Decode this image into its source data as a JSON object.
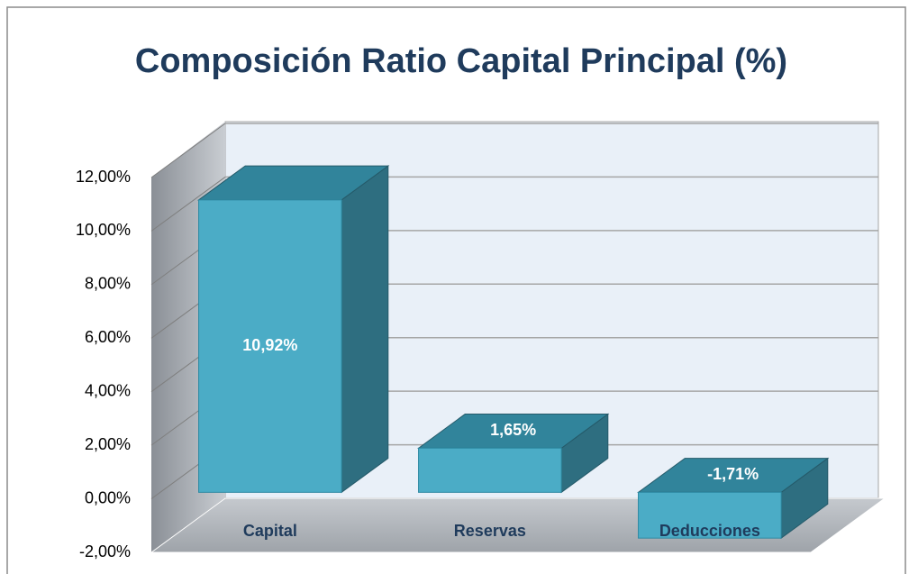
{
  "chart_data": {
    "type": "bar3d",
    "title": "Composición Ratio Capital Principal (%)",
    "categories": [
      "Capital",
      "Reservas",
      "Deducciones"
    ],
    "values": [
      10.92,
      1.65,
      -1.71
    ],
    "value_labels": [
      "10,92%",
      "1,65%",
      "-1,71%"
    ],
    "color": "#4bacc6",
    "ylim": [
      -2,
      12
    ],
    "yticks": [
      {
        "value": -2,
        "label": "-2,00%"
      },
      {
        "value": 0,
        "label": "0,00%"
      },
      {
        "value": 2,
        "label": "2,00%"
      },
      {
        "value": 4,
        "label": "4,00%"
      },
      {
        "value": 6,
        "label": "6,00%"
      },
      {
        "value": 8,
        "label": "8,00%"
      },
      {
        "value": 10,
        "label": "10,00%"
      },
      {
        "value": 12,
        "label": "12,00%"
      }
    ],
    "grid": true
  }
}
